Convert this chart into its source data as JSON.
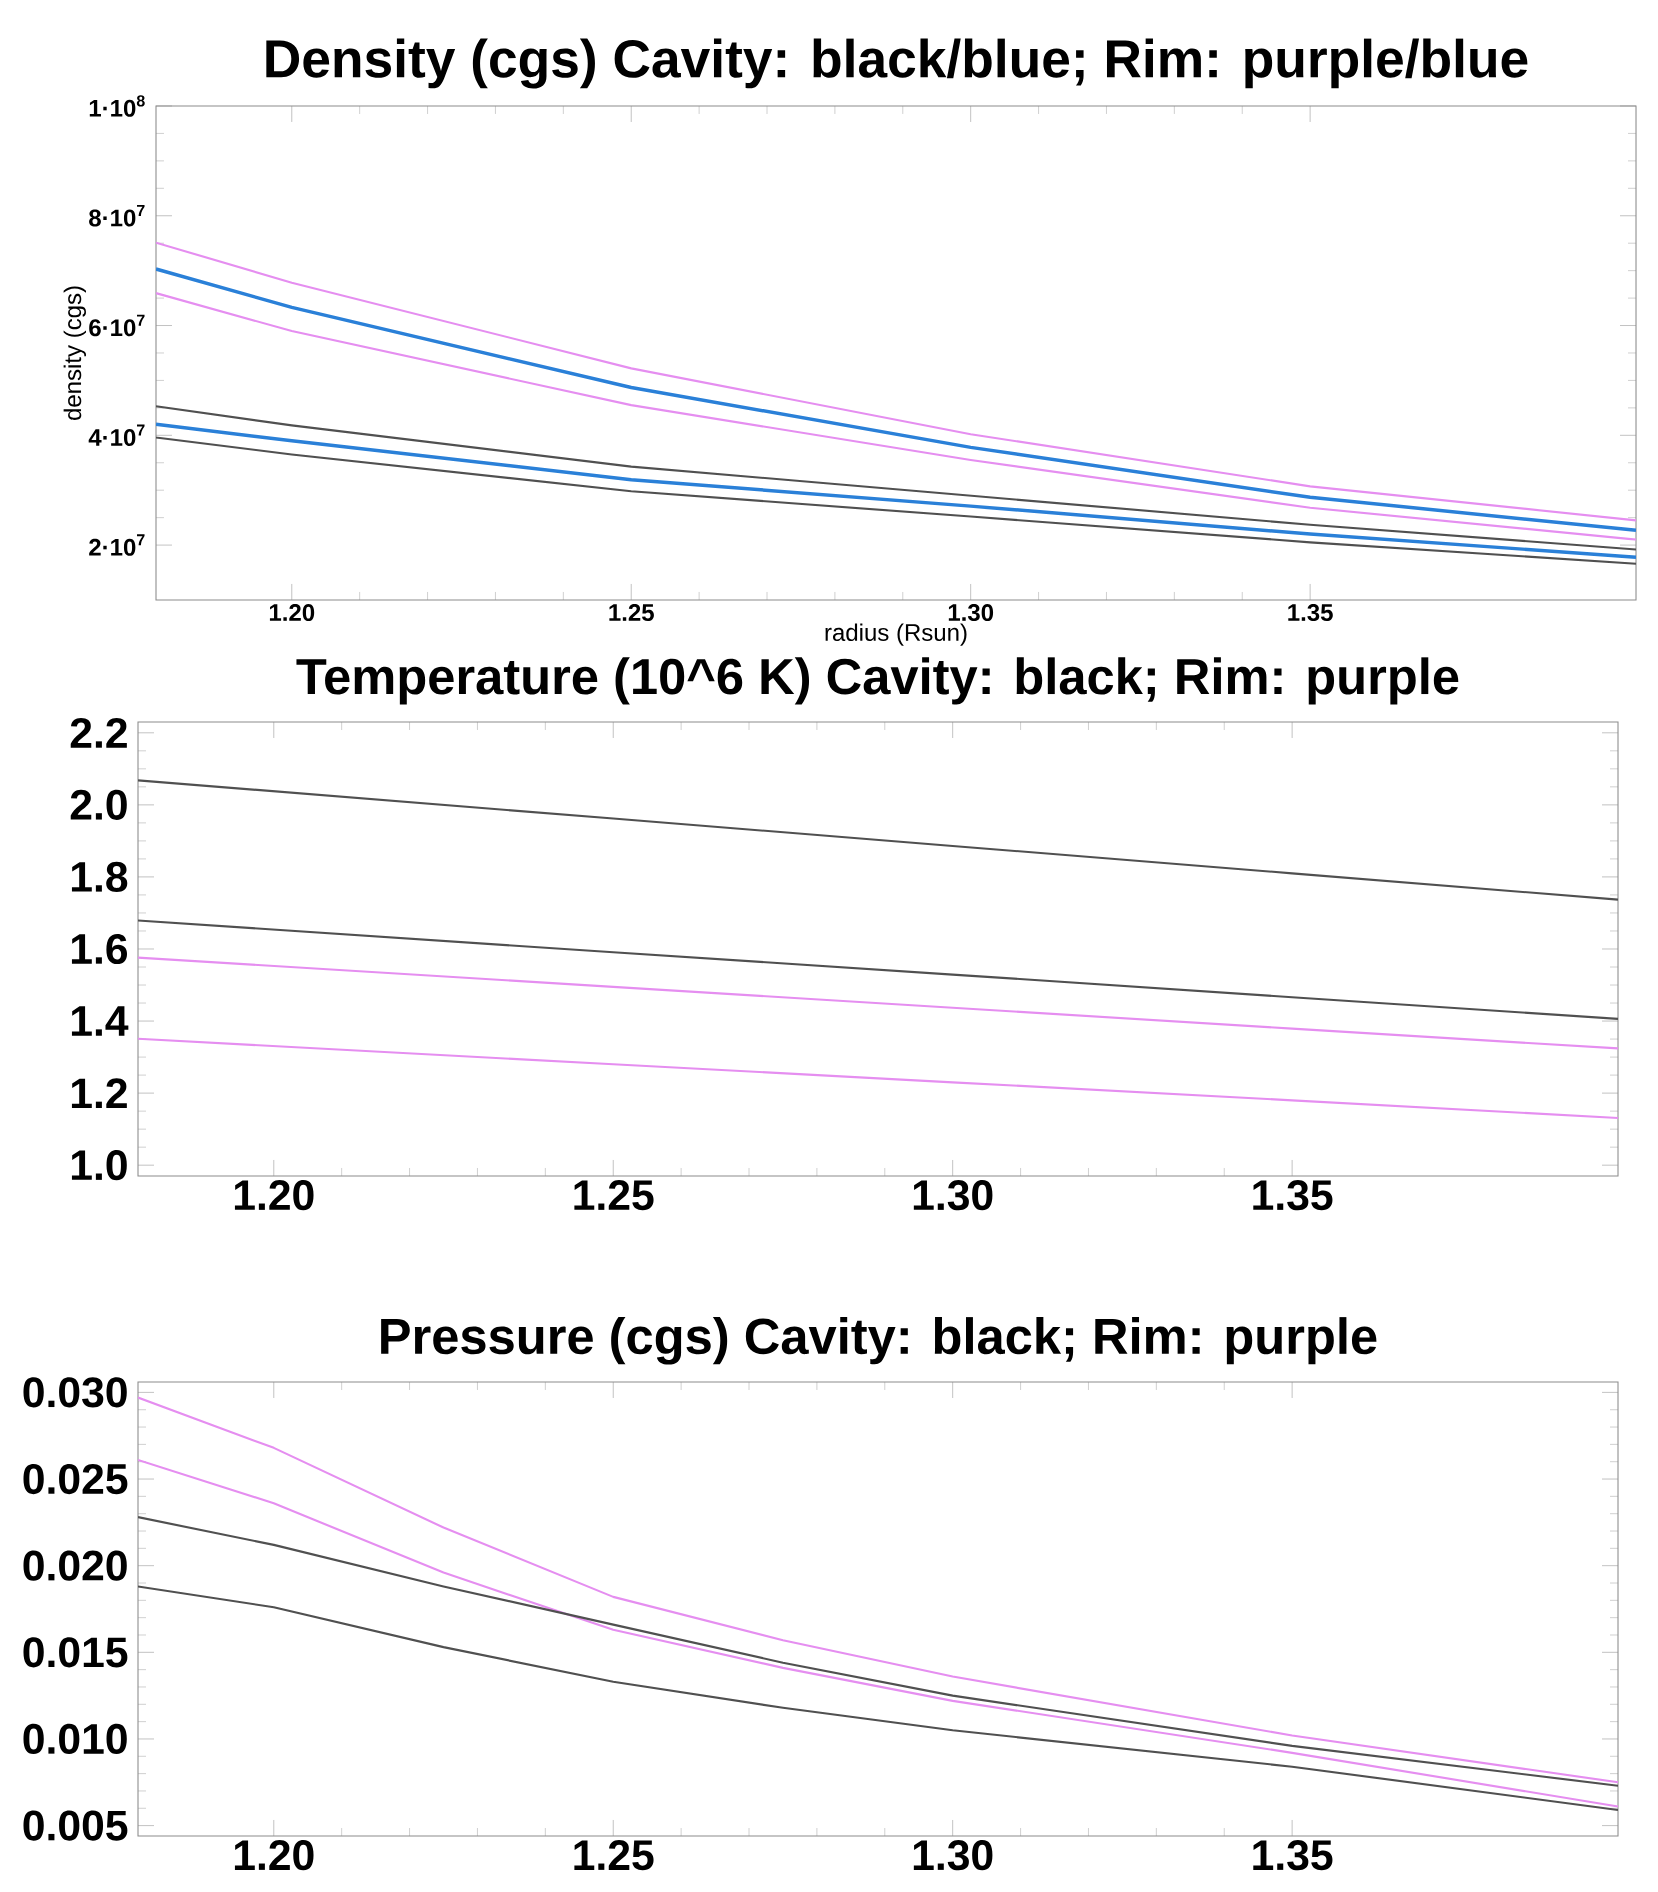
{
  "chart_data": [
    {
      "type": "line",
      "title": "Density (cgs) Cavity: black/blue; Rim: purple/blue",
      "xlabel": "radius (Rsun)",
      "ylabel": "density (cgs)",
      "xlim": [
        1.18,
        1.398
      ],
      "ylim": [
        10000000,
        100000000
      ],
      "xticks": [
        {
          "value": 1.2,
          "label": "1.20"
        },
        {
          "value": 1.25,
          "label": "1.25"
        },
        {
          "value": 1.3,
          "label": "1.30"
        },
        {
          "value": 1.35,
          "label": "1.35"
        }
      ],
      "yticks": [
        {
          "value": 20000000,
          "label": "2·10$^{7}$"
        },
        {
          "value": 40000000,
          "label": "4·10$^{7}$"
        },
        {
          "value": 60000000,
          "label": "6·10$^{7}$"
        },
        {
          "value": 80000000,
          "label": "8·10$^{7}$"
        },
        {
          "value": 100000000,
          "label": "1·10$^{8}$"
        }
      ],
      "marker": "none",
      "series": [
        {
          "color": "#e58ef0",
          "x": [
            1.18,
            1.2,
            1.25,
            1.3,
            1.35,
            1.398
          ],
          "values": [
            75100000,
            67800000,
            52200000,
            40200000,
            30700000,
            24500000
          ]
        },
        {
          "color": "#e58ef0",
          "x": [
            1.18,
            1.2,
            1.25,
            1.3,
            1.35,
            1.398
          ],
          "values": [
            65900000,
            59000000,
            45500000,
            35500000,
            26800000,
            21000000
          ]
        },
        {
          "color": "#505050",
          "x": [
            1.18,
            1.2,
            1.25,
            1.3,
            1.35,
            1.398
          ],
          "values": [
            45300000,
            41800000,
            34300000,
            29000000,
            23700000,
            19200000
          ]
        },
        {
          "color": "#505050",
          "x": [
            1.18,
            1.2,
            1.25,
            1.3,
            1.35,
            1.398
          ],
          "values": [
            39600000,
            36500000,
            29800000,
            25200000,
            20500000,
            16600000
          ]
        },
        {
          "color": "#2a80d8",
          "x": [
            1.18,
            1.2,
            1.25,
            1.3,
            1.35,
            1.398
          ],
          "values": [
            70300000,
            63300000,
            48700000,
            37800000,
            28700000,
            22700000
          ]
        },
        {
          "color": "#2a80d8",
          "x": [
            1.18,
            1.2,
            1.25,
            1.3,
            1.35,
            1.398
          ],
          "values": [
            42000000,
            39000000,
            31900000,
            27100000,
            22000000,
            17800000
          ]
        }
      ]
    },
    {
      "type": "line",
      "title": "Temperature (10^6 K) Cavity: black; Rim: purple",
      "xlim": [
        1.18,
        1.398
      ],
      "ylim": [
        0.97,
        2.23
      ],
      "xticks": [
        {
          "value": 1.2,
          "label": "1.20"
        },
        {
          "value": 1.25,
          "label": "1.25"
        },
        {
          "value": 1.3,
          "label": "1.30"
        },
        {
          "value": 1.35,
          "label": "1.35"
        }
      ],
      "yticks": [
        {
          "value": 1.0,
          "label": "1.0"
        },
        1.2,
        1.4,
        1.6,
        1.8,
        {
          "value": 2.0,
          "label": "2.0"
        },
        2.2
      ],
      "marker": "none",
      "series": [
        {
          "color": "#505050",
          "x": [
            1.18,
            1.25,
            1.3,
            1.35,
            1.398
          ],
          "values": [
            2.068,
            1.962,
            1.886,
            1.81,
            1.737
          ]
        },
        {
          "color": "#505050",
          "x": [
            1.18,
            1.25,
            1.3,
            1.35,
            1.398
          ],
          "values": [
            1.679,
            1.591,
            1.529,
            1.466,
            1.406
          ]
        },
        {
          "color": "#e58ef0",
          "x": [
            1.18,
            1.25,
            1.3,
            1.35,
            1.398
          ],
          "values": [
            1.576,
            1.495,
            1.437,
            1.379,
            1.324
          ]
        },
        {
          "color": "#e58ef0",
          "x": [
            1.18,
            1.25,
            1.3,
            1.35,
            1.398
          ],
          "values": [
            1.351,
            1.28,
            1.23,
            1.18,
            1.131
          ]
        }
      ]
    },
    {
      "type": "line",
      "title": "Pressure (cgs) Cavity: black; Rim: purple",
      "xlim": [
        1.18,
        1.398
      ],
      "ylim": [
        0.0044,
        0.0306
      ],
      "xticks": [
        {
          "value": 1.2,
          "label": "1.20"
        },
        {
          "value": 1.25,
          "label": "1.25"
        },
        {
          "value": 1.3,
          "label": "1.30"
        },
        {
          "value": 1.35,
          "label": "1.35"
        }
      ],
      "yticks": [
        {
          "value": 0.005,
          "label": "0.005"
        },
        {
          "value": 0.01,
          "label": "0.010"
        },
        {
          "value": 0.015,
          "label": "0.015"
        },
        {
          "value": 0.02,
          "label": "0.020"
        },
        {
          "value": 0.025,
          "label": "0.025"
        },
        {
          "value": 0.03,
          "label": "0.030"
        }
      ],
      "marker": "none",
      "series": [
        {
          "color": "#e58ef0",
          "x": [
            1.18,
            1.2,
            1.225,
            1.25,
            1.275,
            1.3,
            1.35,
            1.398
          ],
          "values": [
            0.0297,
            0.0268,
            0.0222,
            0.0182,
            0.0157,
            0.0136,
            0.0102,
            0.0075
          ]
        },
        {
          "color": "#e58ef0",
          "x": [
            1.18,
            1.2,
            1.225,
            1.25,
            1.275,
            1.3,
            1.35,
            1.398
          ],
          "values": [
            0.0261,
            0.0236,
            0.0196,
            0.0163,
            0.0141,
            0.0122,
            0.0092,
            0.0061
          ]
        },
        {
          "color": "#505050",
          "x": [
            1.18,
            1.2,
            1.225,
            1.25,
            1.275,
            1.3,
            1.35,
            1.398
          ],
          "values": [
            0.0228,
            0.0212,
            0.0188,
            0.0166,
            0.0144,
            0.0125,
            0.0096,
            0.0073
          ]
        },
        {
          "color": "#505050",
          "x": [
            1.18,
            1.2,
            1.225,
            1.25,
            1.275,
            1.3,
            1.35,
            1.398
          ],
          "values": [
            0.0188,
            0.0176,
            0.0153,
            0.0133,
            0.0118,
            0.0105,
            0.0084,
            0.0059
          ]
        }
      ]
    }
  ]
}
